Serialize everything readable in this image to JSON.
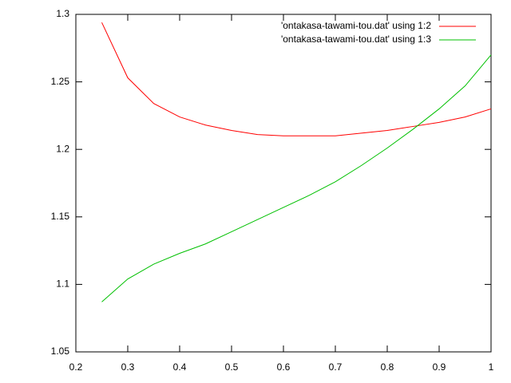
{
  "chart_data": {
    "type": "line",
    "x": [
      0.25,
      0.3,
      0.35,
      0.4,
      0.45,
      0.5,
      0.55,
      0.6,
      0.65,
      0.7,
      0.75,
      0.8,
      0.85,
      0.9,
      0.95,
      1.0
    ],
    "series": [
      {
        "name": "'ontakasa-tawami-tou.dat' using 1:2",
        "color": "#ff0000",
        "values": [
          1.294,
          1.253,
          1.234,
          1.224,
          1.218,
          1.214,
          1.211,
          1.21,
          1.21,
          1.21,
          1.212,
          1.214,
          1.217,
          1.22,
          1.224,
          1.23
        ]
      },
      {
        "name": "'ontakasa-tawami-tou.dat' using 1:3",
        "color": "#00c000",
        "values": [
          1.087,
          1.104,
          1.115,
          1.123,
          1.13,
          1.139,
          1.148,
          1.157,
          1.166,
          1.176,
          1.188,
          1.201,
          1.215,
          1.23,
          1.247,
          1.27
        ]
      }
    ],
    "xlim": [
      0.2,
      1
    ],
    "ylim": [
      1.05,
      1.3
    ],
    "xticks": [
      0.2,
      0.3,
      0.4,
      0.5,
      0.6,
      0.7,
      0.8,
      0.9,
      1
    ],
    "yticks": [
      1.05,
      1.1,
      1.15,
      1.2,
      1.25,
      1.3
    ],
    "grid": false,
    "legend": "top-right"
  }
}
